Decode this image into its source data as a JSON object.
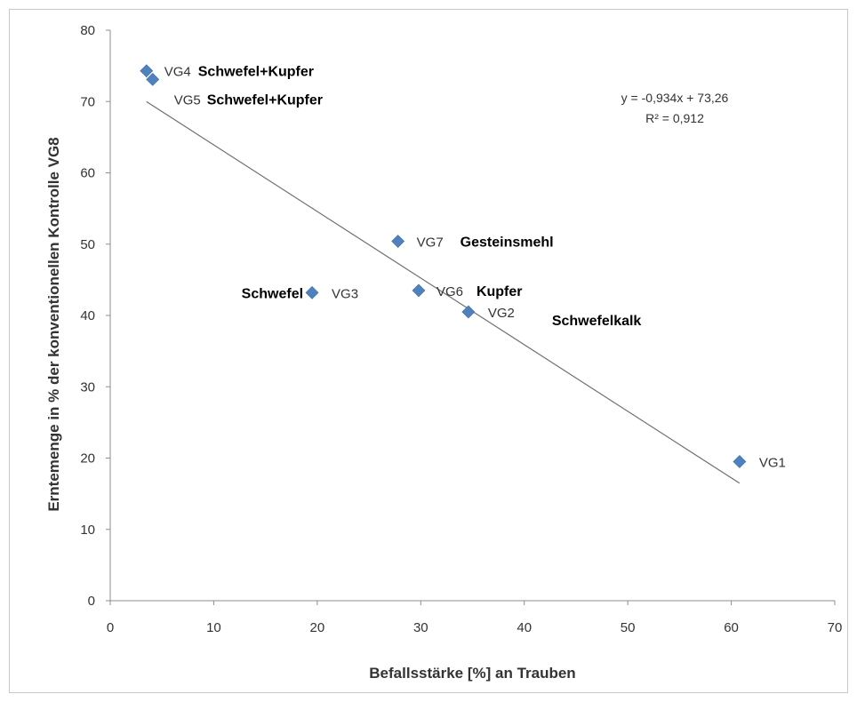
{
  "chart_data": {
    "type": "scatter",
    "xlabel": "Befallsstärke [%] an Trauben",
    "ylabel": "Erntemenge in % der konventionellen Kontrolle VG8",
    "xlim": [
      0,
      70
    ],
    "ylim": [
      0,
      80
    ],
    "x_ticks": [
      0,
      10,
      20,
      30,
      40,
      50,
      60,
      70
    ],
    "y_ticks": [
      0,
      10,
      20,
      30,
      40,
      50,
      60,
      70,
      80
    ],
    "grid": false,
    "marker_color": "#4f81bd",
    "points": [
      {
        "label": "VG1",
        "treatment": "",
        "x": 60.8,
        "y": 19.5
      },
      {
        "label": "VG2",
        "treatment": "Schwefelkalk",
        "x": 34.6,
        "y": 40.5
      },
      {
        "label": "VG3",
        "treatment": "Schwefel",
        "x": 19.5,
        "y": 43.2
      },
      {
        "label": "VG4",
        "treatment": "Schwefel+Kupfer",
        "x": 3.5,
        "y": 74.3
      },
      {
        "label": "VG5",
        "treatment": "Schwefel+Kupfer",
        "x": 4.1,
        "y": 73.1
      },
      {
        "label": "VG6",
        "treatment": "Kupfer",
        "x": 29.8,
        "y": 43.5
      },
      {
        "label": "VG7",
        "treatment": "Gesteinsmehl",
        "x": 27.8,
        "y": 50.4
      }
    ],
    "trendline": {
      "slope": -0.934,
      "intercept": 73.26,
      "x_range": [
        3.5,
        60.8
      ],
      "equation": "y = -0,934x + 73,26",
      "r_squared": "R² = 0,912"
    }
  }
}
